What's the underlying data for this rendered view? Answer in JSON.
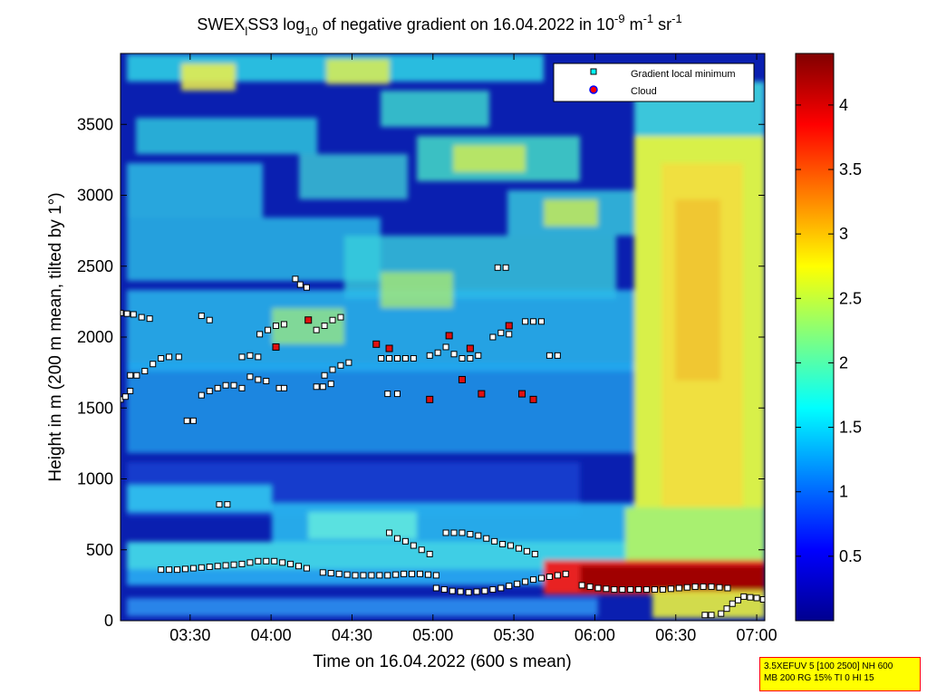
{
  "chart_data": {
    "type": "heatmap",
    "title": {
      "prefix": "SWEX",
      "prefix_sub": "l",
      "middle": "SS3 log",
      "log_sub": "10",
      "rest": " of negative gradient on 16.04.2022 in 10",
      "exp1": "-9",
      "unit1": " m",
      "exp2": "-1",
      "unit2": " sr",
      "exp3": "-1"
    },
    "xlabel": "Time on 16.04.2022 (600 s mean)",
    "ylabel": "Height in m (200 m mean, tilted by 1°)",
    "x_ticks": [
      "03:30",
      "04:00",
      "04:30",
      "05:00",
      "05:30",
      "06:00",
      "06:30",
      "07:00"
    ],
    "x_tick_hours": [
      3.5,
      4.0,
      4.5,
      5.0,
      5.5,
      6.0,
      6.5,
      7.0
    ],
    "xlim_hours": [
      3.07,
      7.05
    ],
    "y_ticks": [
      "0",
      "500",
      "1000",
      "1500",
      "2000",
      "2500",
      "3000",
      "3500"
    ],
    "y_tick_values": [
      0,
      500,
      1000,
      1500,
      2000,
      2500,
      3000,
      3500
    ],
    "ylim": [
      0,
      4000
    ],
    "colorbar": {
      "range": [
        0,
        4.4
      ],
      "ticks": [
        "0.5",
        "1",
        "1.5",
        "2",
        "2.5",
        "3",
        "3.5",
        "4"
      ],
      "tick_values": [
        0.5,
        1,
        1.5,
        2,
        2.5,
        3,
        3.5,
        4
      ],
      "colormap": "jet"
    },
    "legend": {
      "placement": "top-right",
      "entries": [
        "Gradient local minimum",
        "Cloud"
      ]
    },
    "series": [
      {
        "name": "Gradient local minimum",
        "marker": "square",
        "segments": [
          {
            "x": [
              3.07,
              3.1,
              3.13
            ],
            "y": [
              1560,
              1580,
              1620
            ]
          },
          {
            "x": [
              3.13,
              3.17,
              3.22,
              3.27,
              3.32,
              3.37,
              3.43
            ],
            "y": [
              1730,
              1730,
              1760,
              1810,
              1850,
              1860,
              1860
            ]
          },
          {
            "x": [
              3.07,
              3.15,
              3.2,
              3.25
            ],
            "y": [
              2170,
              2160,
              2140,
              2130
            ]
          },
          {
            "x": [
              3.57,
              3.62,
              3.67,
              3.72,
              3.77,
              3.82
            ],
            "y": [
              1590,
              1620,
              1640,
              1660,
              1660,
              1640
            ]
          },
          {
            "x": [
              3.48,
              3.52
            ],
            "y": [
              1410,
              1410
            ]
          },
          {
            "x": [
              3.57,
              3.62
            ],
            "y": [
              2150,
              2120
            ]
          },
          {
            "x": [
              3.82,
              3.87,
              3.92
            ],
            "y": [
              1860,
              1870,
              1860
            ]
          },
          {
            "x": [
              3.87,
              3.92,
              3.97
            ],
            "y": [
              1720,
              1700,
              1690
            ]
          },
          {
            "x": [
              3.93,
              3.98,
              4.03,
              4.08
            ],
            "y": [
              2020,
              2050,
              2080,
              2090
            ]
          },
          {
            "x": [
              4.05,
              4.08
            ],
            "y": [
              1640,
              1640
            ]
          },
          {
            "x": [
              4.15,
              4.18,
              4.22
            ],
            "y": [
              2410,
              2370,
              2350
            ]
          },
          {
            "x": [
              4.28,
              4.32,
              4.37
            ],
            "y": [
              1650,
              1650,
              1670
            ]
          },
          {
            "x": [
              4.33,
              4.38,
              4.43,
              4.48
            ],
            "y": [
              1730,
              1770,
              1800,
              1820
            ]
          },
          {
            "x": [
              4.28,
              4.33,
              4.38,
              4.43
            ],
            "y": [
              2050,
              2080,
              2120,
              2140
            ]
          },
          {
            "x": [
              4.68,
              4.73,
              4.78,
              4.83,
              4.88
            ],
            "y": [
              1850,
              1850,
              1850,
              1850,
              1850
            ]
          },
          {
            "x": [
              4.72,
              4.78
            ],
            "y": [
              1600,
              1600
            ]
          },
          {
            "x": [
              4.98,
              5.03,
              5.08,
              5.13,
              5.18,
              5.23,
              5.28
            ],
            "y": [
              1870,
              1890,
              1930,
              1880,
              1850,
              1850,
              1870
            ]
          },
          {
            "x": [
              5.37,
              5.42,
              5.47
            ],
            "y": [
              2000,
              2030,
              2020
            ]
          },
          {
            "x": [
              5.4,
              5.45
            ],
            "y": [
              2490,
              2490
            ]
          },
          {
            "x": [
              5.57,
              5.62,
              5.67
            ],
            "y": [
              2110,
              2110,
              2110
            ]
          },
          {
            "x": [
              5.72,
              5.77
            ],
            "y": [
              1870,
              1870
            ]
          },
          {
            "x": [
              3.68,
              3.73
            ],
            "y": [
              820,
              820
            ]
          },
          {
            "x": [
              3.32,
              3.42,
              3.52,
              3.62,
              3.72,
              3.82,
              3.92,
              4.02,
              4.12,
              4.22
            ],
            "y": [
              360,
              360,
              370,
              380,
              390,
              400,
              420,
              420,
              400,
              370
            ]
          },
          {
            "x": [
              4.32,
              4.42,
              4.52,
              4.62,
              4.72,
              4.82,
              4.92,
              5.02
            ],
            "y": [
              340,
              330,
              320,
              320,
              320,
              330,
              330,
              320
            ]
          },
          {
            "x": [
              5.02,
              5.12,
              5.22,
              5.32,
              5.42,
              5.52,
              5.62,
              5.72,
              5.82
            ],
            "y": [
              230,
              210,
              200,
              210,
              230,
              260,
              290,
              310,
              330
            ]
          },
          {
            "x": [
              4.73,
              4.78,
              4.83,
              4.88,
              4.93,
              4.98
            ],
            "y": [
              620,
              580,
              560,
              530,
              500,
              470
            ]
          },
          {
            "x": [
              5.08,
              5.13,
              5.18,
              5.23,
              5.28,
              5.33,
              5.38,
              5.43,
              5.48,
              5.53,
              5.58,
              5.63
            ],
            "y": [
              620,
              620,
              620,
              610,
              600,
              580,
              560,
              540,
              530,
              510,
              490,
              470
            ]
          },
          {
            "x": [
              5.92,
              6.02,
              6.12,
              6.22,
              6.32,
              6.42,
              6.52,
              6.62,
              6.72,
              6.82
            ],
            "y": [
              250,
              230,
              220,
              220,
              220,
              220,
              230,
              240,
              240,
              230
            ]
          },
          {
            "x": [
              6.68,
              6.72,
              6.78,
              6.85,
              6.92,
              7.0,
              7.04
            ],
            "y": [
              40,
              40,
              50,
              120,
              170,
              160,
              150
            ]
          }
        ]
      },
      {
        "name": "Cloud",
        "marker": "circle",
        "points": {
          "x": [
            4.03,
            4.23,
            4.65,
            4.73,
            5.1,
            5.23,
            5.3,
            5.47,
            5.55,
            5.62,
            4.98,
            5.18
          ],
          "y": [
            1930,
            2120,
            1950,
            1920,
            2010,
            1920,
            1600,
            2080,
            1600,
            1560,
            1560,
            1700
          ]
        }
      }
    ]
  },
  "infobox": {
    "line1": "3.5XEFUV 5 [100 2500] NH 600",
    "line2": "MB 200 RG 15% TI 0 HI 15"
  }
}
